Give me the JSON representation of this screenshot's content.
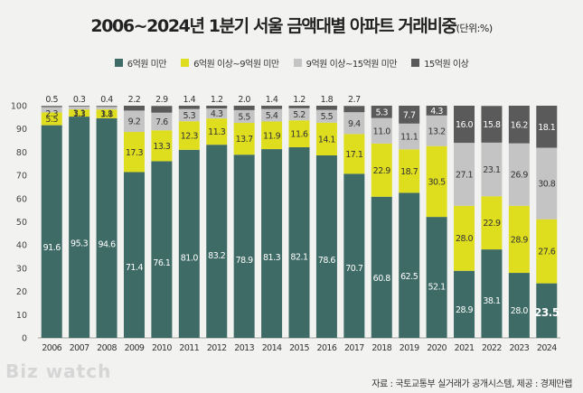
{
  "title": {
    "main": "2006~2024년 1분기 서울 금액대별 아파트 거래비중",
    "unit": "(단위:%)"
  },
  "source": "자료 : 국토교통부 실거래가 공개시스템, 제공 : 경제만랩",
  "watermark": "Biz watch",
  "colors": {
    "s1": "#3f6b66",
    "s2": "#dede1f",
    "s3": "#c4c4c4",
    "s4": "#5a5a5a",
    "background": "#f2f2f0"
  },
  "chart_data": {
    "type": "bar",
    "stacked": true,
    "title": "2006~2024년 1분기 서울 금액대별 아파트 거래비중",
    "ylim": [
      0,
      100
    ],
    "yticks": [
      0,
      10,
      20,
      30,
      40,
      50,
      60,
      70,
      80,
      90,
      100
    ],
    "grid": false,
    "legend_position": "top",
    "categories": [
      "2006",
      "2007",
      "2008",
      "2009",
      "2010",
      "2011",
      "2012",
      "2013",
      "2014",
      "2015",
      "2016",
      "2017",
      "2018",
      "2019",
      "2020",
      "2021",
      "2022",
      "2023",
      "2024"
    ],
    "series": [
      {
        "name": "6억원 미만",
        "color": "#3f6b66",
        "values": [
          91.6,
          95.3,
          94.6,
          71.4,
          76.1,
          81.0,
          83.2,
          78.9,
          81.3,
          82.1,
          78.6,
          70.7,
          60.8,
          62.5,
          52.1,
          28.9,
          38.1,
          28.0,
          23.5
        ]
      },
      {
        "name": "6억원 이상~9억원 미만",
        "color": "#dede1f",
        "values": [
          5.5,
          3.1,
          3.8,
          17.3,
          13.3,
          12.3,
          11.3,
          13.7,
          11.9,
          11.6,
          14.1,
          17.1,
          22.9,
          18.7,
          30.5,
          28.0,
          22.9,
          28.9,
          27.6
        ]
      },
      {
        "name": "9억원 이상~15억원 미만",
        "color": "#c4c4c4",
        "values": [
          2.3,
          1.3,
          1.1,
          9.2,
          7.6,
          5.3,
          4.3,
          5.5,
          5.4,
          5.2,
          5.5,
          9.4,
          11.0,
          11.1,
          13.2,
          27.1,
          23.1,
          26.9,
          30.8
        ]
      },
      {
        "name": "15억원 이상",
        "color": "#5a5a5a",
        "values": [
          0.5,
          0.3,
          0.4,
          2.2,
          2.9,
          1.4,
          1.2,
          2.0,
          1.4,
          1.2,
          1.8,
          2.7,
          5.3,
          7.7,
          4.3,
          16.0,
          15.8,
          16.2,
          18.1
        ]
      }
    ]
  }
}
